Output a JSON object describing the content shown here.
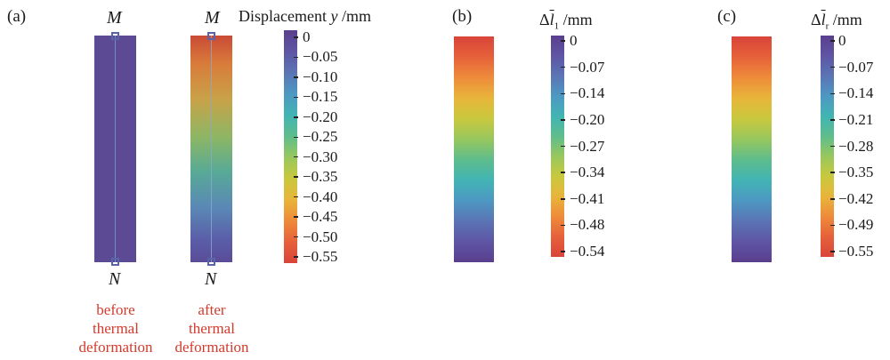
{
  "panels": {
    "a": {
      "label": "(a)",
      "top_point": "M",
      "bottom_point": "N",
      "before_caption": [
        "before",
        "thermal",
        "deformation"
      ],
      "after_caption": [
        "after",
        "thermal",
        "deformation"
      ],
      "colorbar": {
        "title_text": "Displacement ",
        "title_var": "y",
        "title_unit": " /mm",
        "ticks": [
          "0",
          "−0.05",
          "−0.10",
          "−0.15",
          "−0.20",
          "−0.25",
          "−0.30",
          "−0.35",
          "−0.40",
          "−0.45",
          "−0.50",
          "−0.55"
        ]
      }
    },
    "b": {
      "label": "(b)",
      "colorbar": {
        "title_prefix": "Δ",
        "title_var": "l",
        "title_sub": "1",
        "title_unit": " /mm",
        "ticks": [
          "0",
          "−0.07",
          "−0.14",
          "−0.20",
          "−0.27",
          "−0.34",
          "−0.41",
          "−0.48",
          "−0.54"
        ]
      }
    },
    "c": {
      "label": "(c)",
      "colorbar": {
        "title_prefix": "Δ",
        "title_var": "l",
        "title_sub": "r",
        "title_unit": " /mm",
        "ticks": [
          "0",
          "−0.07",
          "−0.14",
          "−0.21",
          "−0.28",
          "−0.35",
          "−0.42",
          "−0.49",
          "−0.55"
        ]
      }
    }
  },
  "colormap": [
    "#5a3f8e",
    "#5e55a4",
    "#5b74b4",
    "#4d98c2",
    "#42b4b4",
    "#5ebd8c",
    "#98c75d",
    "#c9c83d",
    "#e8b53a",
    "#ee8b3a",
    "#e6613a",
    "#d9443a"
  ]
}
